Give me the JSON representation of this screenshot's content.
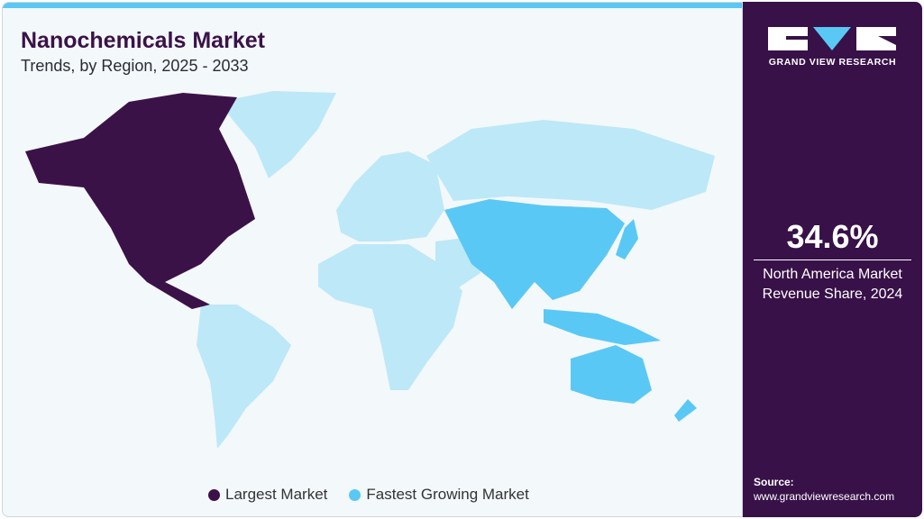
{
  "header": {
    "title": "Nanochemicals Market",
    "subtitle": "Trends, by Region, 2025 - 2033"
  },
  "brand": {
    "name": "GRAND VIEW RESEARCH"
  },
  "stat": {
    "value": "34.6%",
    "label_line1": "North America Market",
    "label_line2": "Revenue Share, 2024"
  },
  "source": {
    "label": "Source:",
    "url": "www.grandviewresearch.com"
  },
  "legend": [
    {
      "label": "Largest Market",
      "color": "#3b1248"
    },
    {
      "label": "Fastest Growing Market",
      "color": "#5ac8f5"
    }
  ],
  "map": {
    "regions": [
      {
        "name": "North America",
        "status": "Largest Market",
        "color": "#3b1248"
      },
      {
        "name": "Asia Pacific",
        "status": "Fastest Growing Market",
        "color": "#5ac8f5"
      },
      {
        "name": "Rest of World",
        "status": "",
        "color": "#bde8f8"
      }
    ]
  }
}
